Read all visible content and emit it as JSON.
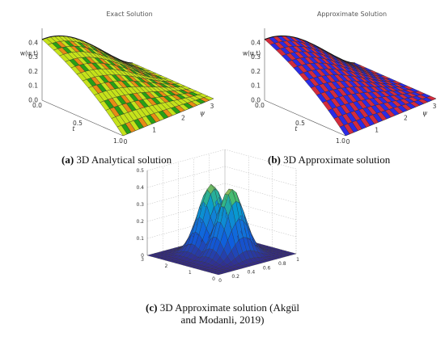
{
  "chart_data": [
    {
      "type": "surface3d",
      "title": "Exact Solution",
      "zlabel": "w(ψ,t)",
      "xlabel": "t",
      "ylabel": "ψ",
      "t_ticks": [
        "0.0",
        "0.5",
        "1.0"
      ],
      "psi_ticks": [
        "0",
        "1",
        "2",
        "3"
      ],
      "z_ticks": [
        "0.0",
        "0.1",
        "0.2",
        "0.3",
        "0.4"
      ],
      "t_range": [
        0,
        1
      ],
      "psi_range": [
        0,
        3.14
      ],
      "z_range": [
        0,
        0.5
      ],
      "peak_z": 0.44,
      "colors": [
        "#c5e21a",
        "#e88b16",
        "#27a016"
      ]
    },
    {
      "type": "surface3d",
      "title": "Approximate Solution",
      "zlabel": "w(ψ,t)",
      "xlabel": "t",
      "ylabel": "ψ",
      "t_ticks": [
        "0.0",
        "0.5",
        "1.0"
      ],
      "psi_ticks": [
        "0",
        "1",
        "2",
        "3"
      ],
      "z_ticks": [
        "0.0",
        "0.1",
        "0.2",
        "0.3",
        "0.4"
      ],
      "t_range": [
        0,
        1
      ],
      "psi_range": [
        0,
        3.14
      ],
      "z_range": [
        0,
        0.5
      ],
      "peak_z": 0.44,
      "colors": [
        "#2a2be6",
        "#d32b3c",
        "#5a1f8c"
      ]
    },
    {
      "type": "surface3d",
      "x_ticks": [
        "0",
        "0.2",
        "0.4",
        "0.6",
        "0.8",
        "1"
      ],
      "y_ticks": [
        "0",
        "1",
        "2",
        "3"
      ],
      "z_ticks": [
        "0",
        "0.1",
        "0.2",
        "0.3",
        "0.4",
        "0.5"
      ],
      "x_range": [
        0,
        1
      ],
      "y_range": [
        0,
        3
      ],
      "z_range": [
        0,
        0.5
      ],
      "peak_z": 0.45,
      "colormap": "parula"
    }
  ],
  "captions": {
    "a_label": "(a)",
    "a_text": "3D Analytical solution",
    "b_label": "(b)",
    "b_text": "3D Approximate solution",
    "c_label": "(c)",
    "c_text": "3D Approximate solution (Akgül and Modanli, 2019)"
  }
}
